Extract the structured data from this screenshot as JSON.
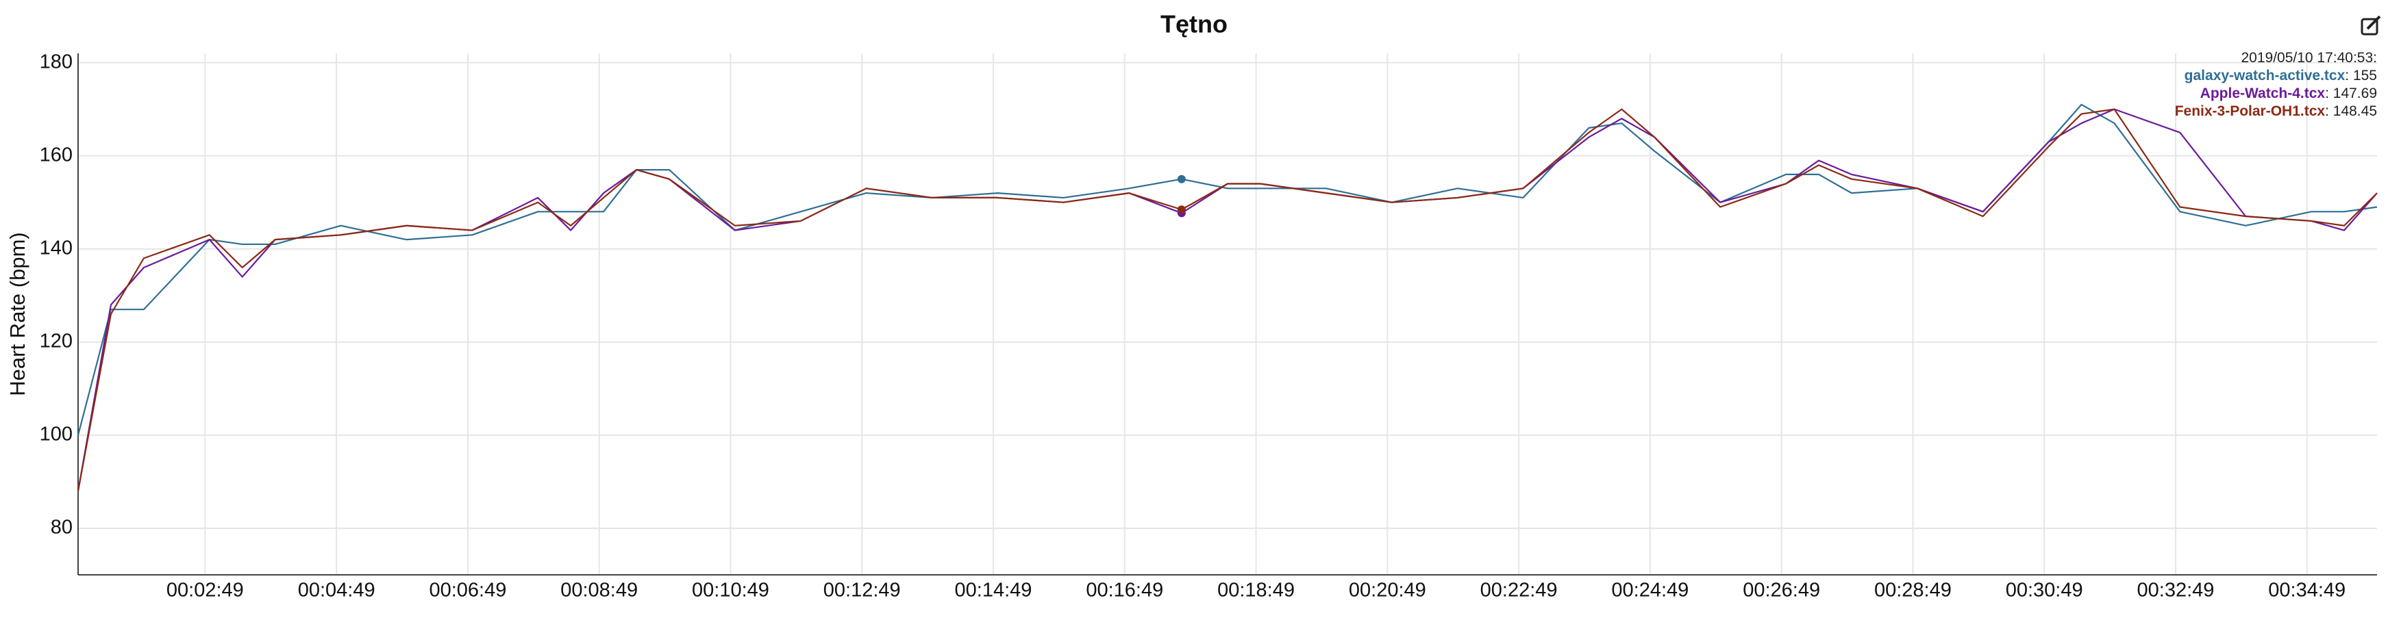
{
  "chart_data": {
    "type": "line",
    "title": "Tętno",
    "y_label": "Heart Rate (bpm)",
    "x": [
      53,
      83,
      113,
      173,
      203,
      233,
      293,
      353,
      413,
      473,
      503,
      533,
      563,
      593,
      653,
      713,
      773,
      833,
      893,
      953,
      1013,
      1061,
      1103,
      1133,
      1193,
      1253,
      1313,
      1373,
      1433,
      1463,
      1493,
      1553,
      1613,
      1643,
      1673,
      1733,
      1793,
      1853,
      1883,
      1913,
      1973,
      2033,
      2093,
      2123,
      2153
    ],
    "series": [
      {
        "name": "galaxy-watch-active.tcx",
        "color": "#2f6f95",
        "hover_value": 155,
        "values": [
          100,
          127,
          127,
          142,
          141,
          141,
          145,
          142,
          143,
          148,
          148,
          148,
          157,
          157,
          144,
          148,
          152,
          151,
          152,
          151,
          153,
          155,
          153,
          153,
          153,
          150,
          153,
          151,
          166,
          167,
          161,
          150,
          156,
          156,
          152,
          153,
          148,
          163,
          171,
          167,
          148,
          145,
          148,
          148,
          149
        ]
      },
      {
        "name": "Apple-Watch-4.tcx",
        "color": "#6a1b9a",
        "hover_value": 147.69,
        "values": [
          88,
          128,
          136,
          142,
          134,
          142,
          143,
          145,
          144,
          151,
          144,
          152,
          157,
          155,
          144,
          146,
          153,
          151,
          151,
          150,
          152,
          147.69,
          154,
          154,
          152,
          150,
          151,
          153,
          164,
          168,
          164,
          150,
          154,
          159,
          156,
          153,
          148,
          163,
          167,
          170,
          165,
          147,
          146,
          144,
          152
        ]
      },
      {
        "name": "Fenix-3-Polar-OH1.tcx",
        "color": "#8b2a14",
        "hover_value": 148.45,
        "values": [
          88,
          126,
          138,
          143,
          136,
          142,
          143,
          145,
          144,
          150,
          145,
          151,
          157,
          155,
          145,
          146,
          153,
          151,
          151,
          150,
          152,
          148.45,
          154,
          154,
          152,
          150,
          151,
          153,
          165,
          170,
          164,
          149,
          154,
          158,
          155,
          153,
          147,
          162,
          169,
          170,
          149,
          147,
          146,
          145,
          152
        ]
      }
    ],
    "hover": {
      "label": "2019/05/10 17:40:53:",
      "x": 1061
    },
    "xlim": [
      53,
      2153
    ],
    "ylim": [
      70,
      182
    ],
    "yticks": [
      80,
      100,
      120,
      140,
      160,
      180
    ],
    "xticks": [
      {
        "value": 169,
        "label": "00:02:49"
      },
      {
        "value": 289,
        "label": "00:04:49"
      },
      {
        "value": 409,
        "label": "00:06:49"
      },
      {
        "value": 529,
        "label": "00:08:49"
      },
      {
        "value": 649,
        "label": "00:10:49"
      },
      {
        "value": 769,
        "label": "00:12:49"
      },
      {
        "value": 889,
        "label": "00:14:49"
      },
      {
        "value": 1009,
        "label": "00:16:49"
      },
      {
        "value": 1129,
        "label": "00:18:49"
      },
      {
        "value": 1249,
        "label": "00:20:49"
      },
      {
        "value": 1369,
        "label": "00:22:49"
      },
      {
        "value": 1489,
        "label": "00:24:49"
      },
      {
        "value": 1609,
        "label": "00:26:49"
      },
      {
        "value": 1729,
        "label": "00:28:49"
      },
      {
        "value": 1849,
        "label": "00:30:49"
      },
      {
        "value": 1969,
        "label": "00:32:49"
      },
      {
        "value": 2089,
        "label": "00:34:49"
      }
    ],
    "grid": true
  }
}
